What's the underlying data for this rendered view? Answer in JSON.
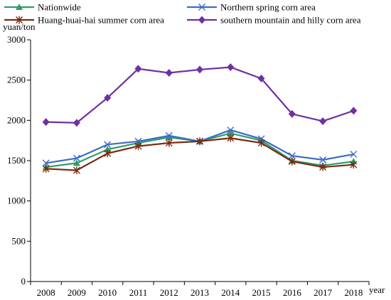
{
  "chart_data": {
    "type": "line",
    "title": "",
    "xlabel": "year",
    "ylabel": "yuan/ton",
    "ylim": [
      0,
      3000
    ],
    "yticks": [
      0,
      500,
      1000,
      1500,
      2000,
      2500,
      3000
    ],
    "grid": false,
    "legend_position": "top",
    "categories": [
      "2008",
      "2009",
      "2010",
      "2011",
      "2012",
      "2013",
      "2014",
      "2015",
      "2016",
      "2017",
      "2018"
    ],
    "series": [
      {
        "name": "Nationwide",
        "marker": "triangle",
        "color": "#2e9e6a",
        "values": [
          1420,
          1470,
          1640,
          1720,
          1790,
          1740,
          1840,
          1750,
          1500,
          1440,
          1490
        ]
      },
      {
        "name": "Northern spring corn area",
        "marker": "x",
        "color": "#3b6cc6",
        "values": [
          1470,
          1530,
          1700,
          1740,
          1810,
          1740,
          1880,
          1770,
          1560,
          1510,
          1580
        ]
      },
      {
        "name": "Huang-huai-hai summer corn area",
        "marker": "star",
        "color": "#7b2a10",
        "values": [
          1400,
          1380,
          1590,
          1680,
          1720,
          1740,
          1780,
          1720,
          1490,
          1420,
          1450
        ]
      },
      {
        "name": "southern mountain and hilly corn area",
        "marker": "diamond",
        "color": "#7030a0",
        "values": [
          1980,
          1970,
          2280,
          2640,
          2590,
          2630,
          2660,
          2520,
          2080,
          1990,
          2120
        ]
      }
    ]
  }
}
